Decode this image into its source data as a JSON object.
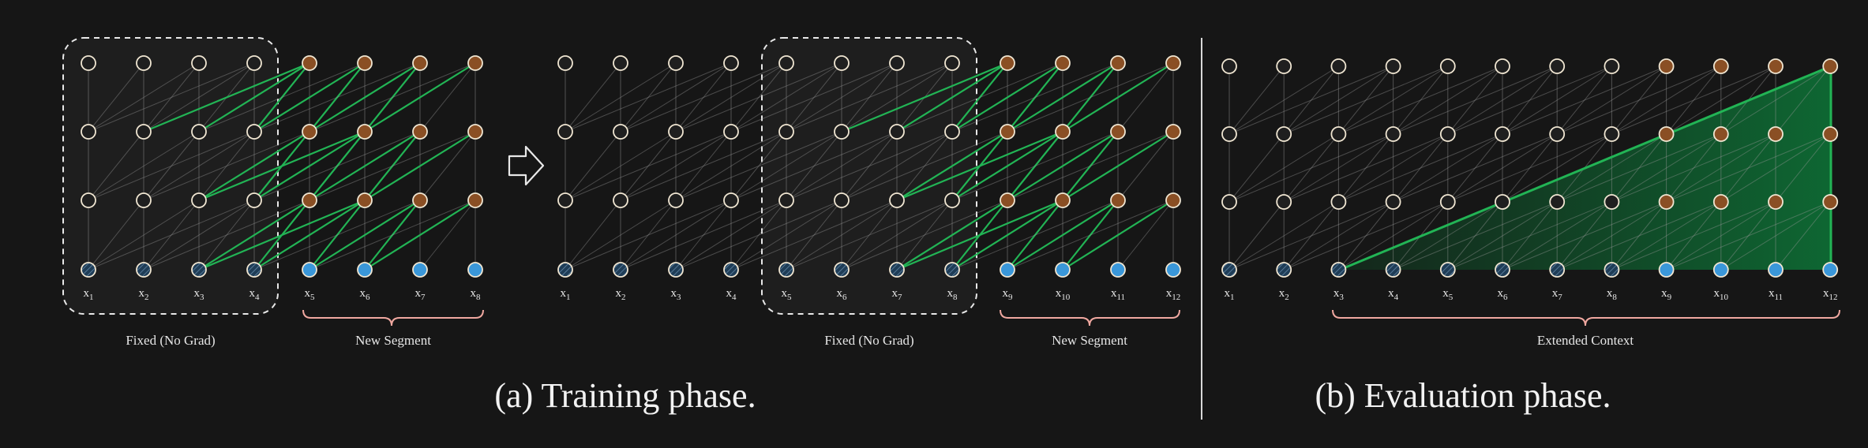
{
  "training": {
    "left_x_labels": [
      "x1",
      "x2",
      "x3",
      "x4",
      "x5",
      "x6",
      "x7",
      "x8"
    ],
    "right_x_labels": [
      "x1",
      "x2",
      "x3",
      "x4",
      "x5",
      "x6",
      "x7",
      "x8",
      "x9",
      "x10",
      "x11",
      "x12"
    ],
    "fixed_label": "Fixed (No Grad)",
    "new_segment_label": "New Segment",
    "caption": "(a) Training phase."
  },
  "evaluation": {
    "x_labels": [
      "x1",
      "x2",
      "x3",
      "x4",
      "x5",
      "x6",
      "x7",
      "x8",
      "x9",
      "x10",
      "x11",
      "x12"
    ],
    "extended_label": "Extended Context",
    "caption": "(b) Evaluation phase."
  },
  "colors": {
    "background": "#161616",
    "hidden_cached": "#1f1f1f",
    "hidden_active": "#8a4f24",
    "input_cached": "#1f3d57",
    "input_active": "#3a97d9",
    "node_stroke": "#f0e6d2",
    "attention_line": "#9a9a9a",
    "gradient_line": "#22b455",
    "bracket": "#f0a8a0",
    "dashed_box": "#e8e8e8"
  }
}
